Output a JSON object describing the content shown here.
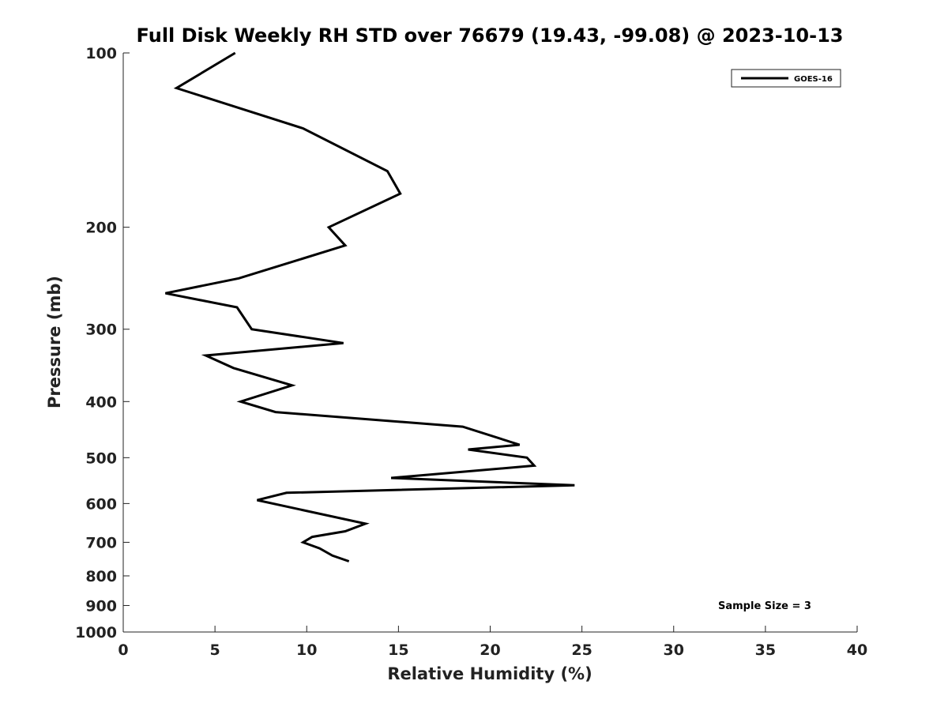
{
  "chart_data": {
    "type": "line",
    "title": "Full Disk Weekly RH STD over 76679 (19.43, -99.08) @ 2023-10-13",
    "xlabel": "Relative Humidity (%)",
    "ylabel": "Pressure (mb)",
    "xlim": [
      0,
      40
    ],
    "ylim": [
      100,
      1000
    ],
    "y_scale": "log",
    "y_inverted": true,
    "x_ticks": [
      0,
      5,
      10,
      15,
      20,
      25,
      30,
      35,
      40
    ],
    "y_ticks": [
      100,
      200,
      300,
      400,
      500,
      600,
      700,
      800,
      900,
      1000
    ],
    "grid": false,
    "legend_position": "top-right",
    "annotation": "Sample Size = 3",
    "series": [
      {
        "name": "GOES-16",
        "color": "#000000",
        "x": [
          6.1,
          2.9,
          9.8,
          14.4,
          15.1,
          11.2,
          12.1,
          6.3,
          2.3,
          6.2,
          7.0,
          12.0,
          4.5,
          6.0,
          9.2,
          6.4,
          8.3,
          18.5,
          21.6,
          18.8,
          22.0,
          22.4,
          14.6,
          24.6,
          8.9,
          7.3,
          13.2,
          12.1,
          10.3,
          9.8,
          10.7,
          11.4,
          12.3
        ],
        "y": [
          100,
          115,
          135,
          160,
          175,
          200,
          215,
          245,
          260,
          275,
          300,
          317,
          333,
          350,
          375,
          400,
          417,
          442,
          475,
          484,
          500,
          516,
          542,
          558,
          575,
          592,
          650,
          670,
          685,
          700,
          717,
          738,
          755
        ]
      }
    ]
  }
}
